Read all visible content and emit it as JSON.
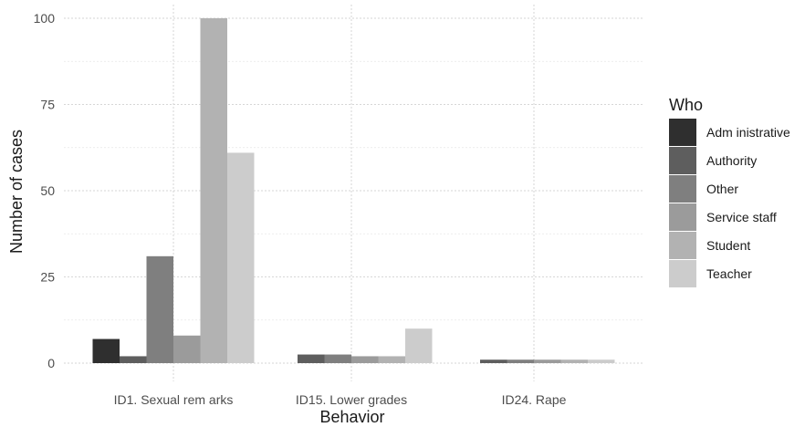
{
  "chart_data": {
    "type": "bar",
    "xlabel": "Behavior",
    "ylabel": "Number of cases",
    "categories": [
      "ID1. Sexual rem arks",
      "ID15. Lower grades",
      "ID24. Rape"
    ],
    "y_ticks": [
      0,
      25,
      50,
      75,
      100
    ],
    "ylim": [
      0,
      100
    ],
    "grid": true,
    "legend": {
      "title": "Who",
      "position": "right"
    },
    "series": [
      {
        "name": "Adm inistrative",
        "color": "#2f2f2f",
        "values": [
          7,
          0,
          0
        ]
      },
      {
        "name": "Authority",
        "color": "#5e5e5e",
        "values": [
          2,
          2.5,
          1
        ]
      },
      {
        "name": "Other",
        "color": "#7f7f7f",
        "values": [
          31,
          2.5,
          1
        ]
      },
      {
        "name": "Service staff",
        "color": "#9b9b9b",
        "values": [
          8,
          2,
          1
        ]
      },
      {
        "name": "Student",
        "color": "#b2b2b2",
        "values": [
          100,
          2,
          1
        ]
      },
      {
        "name": "Teacher",
        "color": "#cccccc",
        "values": [
          61,
          10,
          1
        ]
      }
    ]
  }
}
